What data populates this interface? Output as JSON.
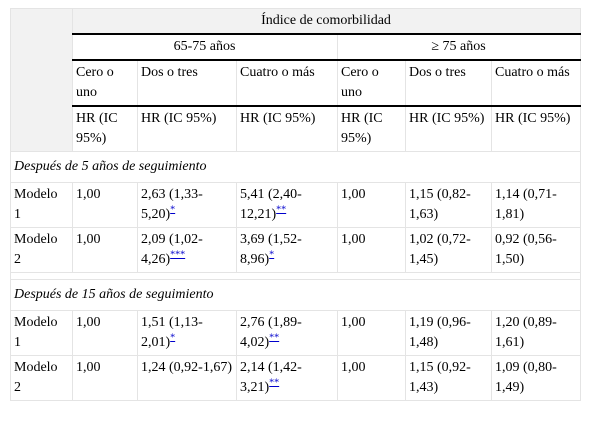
{
  "header": {
    "title": "Índice de comorbilidad",
    "groups": [
      "65-75 años",
      "≥ 75 años"
    ],
    "columns": [
      "Cero o uno",
      "Dos o tres",
      "Cuatro o más",
      "Cero o uno",
      "Dos o tres",
      "Cuatro o más"
    ],
    "measures": [
      "HR (IC 95%)",
      "HR (IC 95%)",
      "HR (IC 95%)",
      "HR (IC 95%)",
      "HR (IC 95%)",
      "HR (IC 95%)"
    ]
  },
  "sections": [
    {
      "title": "Después de 5 años de seguimiento",
      "rows": [
        {
          "label": "Modelo 1",
          "cells": [
            {
              "text": "1,00"
            },
            {
              "text": "2,63 (1,33-5,20)",
              "note": "*"
            },
            {
              "text": "5,41 (2,40-12,21)",
              "note": "**"
            },
            {
              "text": "1,00"
            },
            {
              "text": "1,15 (0,82-1,63)"
            },
            {
              "text": "1,14 (0,71-1,81)"
            }
          ]
        },
        {
          "label": "Modelo 2",
          "cells": [
            {
              "text": "1,00"
            },
            {
              "text": "2,09 (1,02-4,26)",
              "note": "***"
            },
            {
              "text": "3,69 (1,52-8,96)",
              "note": "*"
            },
            {
              "text": "1,00"
            },
            {
              "text": "1,02 (0,72-1,45)"
            },
            {
              "text": "0,92 (0,56-1,50)"
            }
          ]
        }
      ]
    },
    {
      "title": "Después de 15 años de seguimiento",
      "rows": [
        {
          "label": "Modelo 1",
          "cells": [
            {
              "text": "1,00"
            },
            {
              "text": "1,51 (1,13-2,01)",
              "note": "*"
            },
            {
              "text": "2,76 (1,89-4,02)",
              "note": "**"
            },
            {
              "text": "1,00"
            },
            {
              "text": "1,19 (0,96-1,48)"
            },
            {
              "text": "1,20 (0,89-1,61)"
            }
          ]
        },
        {
          "label": "Modelo 2",
          "cells": [
            {
              "text": "1,00"
            },
            {
              "text": "1,24 (0,92-1,67)"
            },
            {
              "text": "2,14 (1,42-3,21)",
              "note": "**"
            },
            {
              "text": "1,00"
            },
            {
              "text": "1,15 (0,92-1,43)"
            },
            {
              "text": "1,09 (0,80-1,49)"
            }
          ]
        }
      ]
    }
  ]
}
